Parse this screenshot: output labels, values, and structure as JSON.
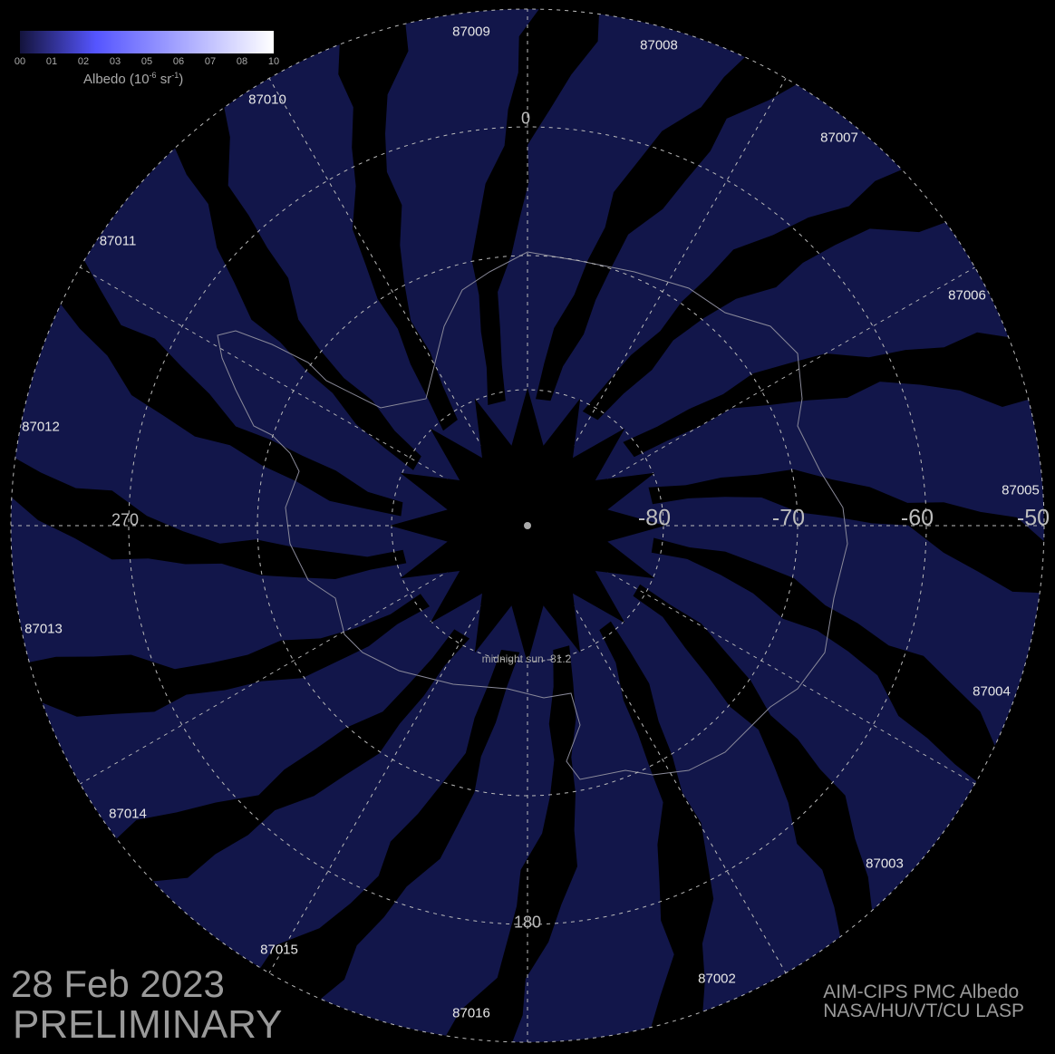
{
  "colorbar": {
    "colors": [
      "#14143c",
      "#5555ff",
      "#ffffff"
    ],
    "ticks": [
      "00",
      "01",
      "02",
      "03",
      "05",
      "06",
      "07",
      "08",
      "10"
    ],
    "title": "Albedo (10",
    "title_exp1": "-6",
    "title_mid": " sr",
    "title_exp2": "-1",
    "title_end": ")"
  },
  "map": {
    "swath_color": "#12164a",
    "orbits": [
      "87009",
      "87008",
      "87007",
      "87006",
      "87005",
      "87004",
      "87003",
      "87002",
      "87016",
      "87015",
      "87014",
      "87013",
      "87012",
      "87011",
      "87010"
    ],
    "longitude_labels": [
      "0",
      "270",
      "180"
    ],
    "latitude_labels": [
      "-80",
      "-70",
      "-60",
      "-50"
    ],
    "midnight_sun": "midnight sun -81.2"
  },
  "footer": {
    "date": "28 Feb 2023",
    "status": "PRELIMINARY",
    "credit_line1": "AIM-CIPS PMC Albedo",
    "credit_line2": "NASA/HU/VT/CU LASP"
  }
}
